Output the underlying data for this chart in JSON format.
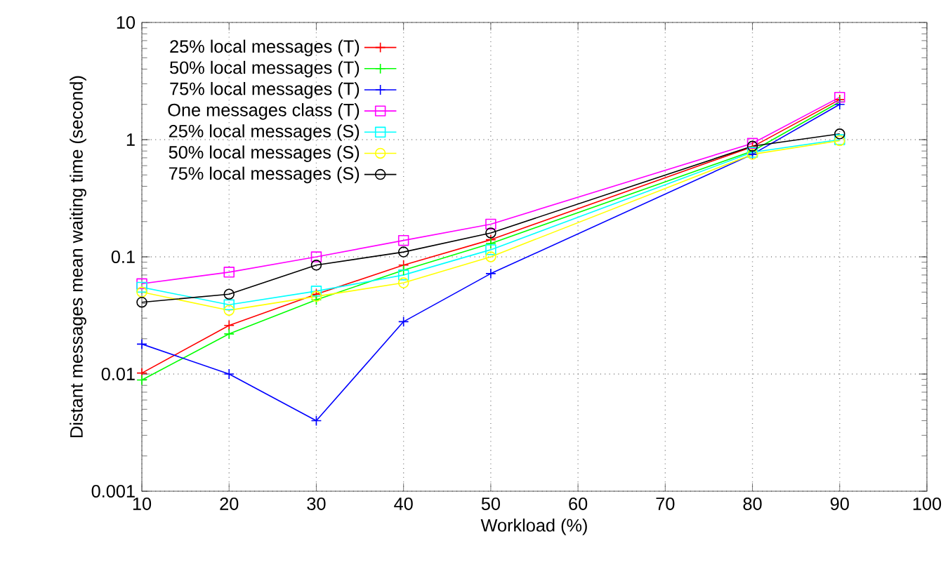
{
  "chart_data": {
    "type": "line",
    "xlabel": "Workload (%)",
    "ylabel": "Distant messages mean waiting time (second)",
    "x": [
      10,
      20,
      30,
      40,
      50,
      80,
      90
    ],
    "series": [
      {
        "name": "25% local messages (T)",
        "color": "#ff0000",
        "marker": "cross",
        "values": [
          0.0102,
          0.026,
          0.048,
          0.085,
          0.14,
          0.87,
          2.2
        ]
      },
      {
        "name": "50% local messages (T)",
        "color": "#00ff00",
        "marker": "cross",
        "values": [
          0.0089,
          0.022,
          0.043,
          0.077,
          0.13,
          0.8,
          2.1
        ]
      },
      {
        "name": "75% local messages (T)",
        "color": "#0000ff",
        "marker": "cross",
        "values": [
          0.018,
          0.01,
          0.004,
          0.028,
          0.072,
          0.75,
          2.0
        ]
      },
      {
        "name": "One messages class (T)",
        "color": "#ff00ff",
        "marker": "square",
        "values": [
          0.059,
          0.074,
          0.1,
          0.138,
          0.19,
          0.93,
          2.3
        ]
      },
      {
        "name": "25% local messages (S)",
        "color": "#00ffff",
        "marker": "square",
        "values": [
          0.055,
          0.039,
          0.051,
          0.07,
          0.115,
          0.78,
          1.0
        ]
      },
      {
        "name": "50% local messages (S)",
        "color": "#ffff00",
        "marker": "circle",
        "values": [
          0.05,
          0.035,
          0.046,
          0.06,
          0.1,
          0.75,
          0.98
        ]
      },
      {
        "name": "75% local messages (S)",
        "color": "#000000",
        "marker": "circle",
        "values": [
          0.041,
          0.048,
          0.085,
          0.11,
          0.16,
          0.88,
          1.12
        ]
      }
    ],
    "log": "y",
    "grid": true,
    "legend": "top left",
    "line_style": "solid",
    "xlim": [
      10,
      100
    ],
    "xticks": [
      10,
      20,
      30,
      40,
      50,
      60,
      70,
      80,
      90,
      100
    ],
    "ylim": [
      0.001,
      10
    ],
    "yticks": [
      0.001,
      0.01,
      0.1,
      1,
      10
    ]
  }
}
